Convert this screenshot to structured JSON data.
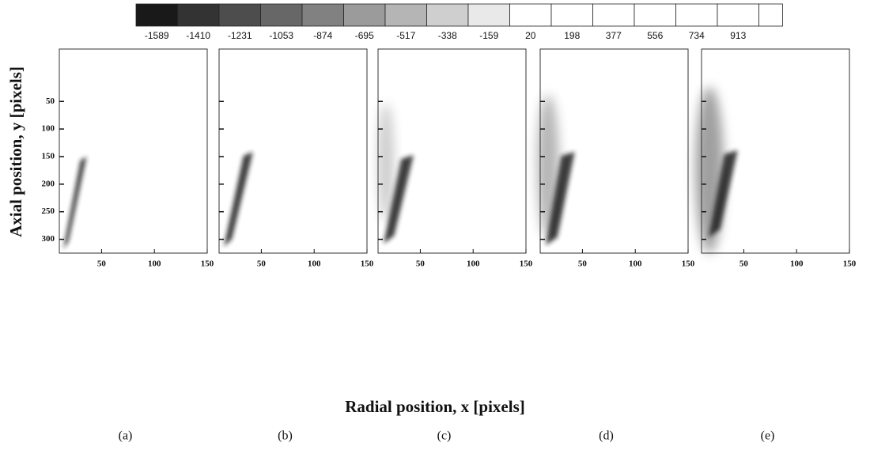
{
  "chart_data": {
    "type": "image-panels",
    "colorbar": {
      "ticks": [
        -1589,
        -1410,
        -1231,
        -1053,
        -874,
        -695,
        -517,
        -338,
        -159,
        20,
        198,
        377,
        556,
        734,
        913
      ]
    },
    "xlabel": "Radial position, x [pixels]",
    "ylabel": "Axial position, y [pixels]",
    "xlim": [
      10,
      150
    ],
    "ylim": [
      325,
      -45
    ],
    "yticks": [
      50,
      100,
      150,
      200,
      250,
      300
    ],
    "panels": [
      {
        "label": "(a)",
        "xticks": [
          50,
          100,
          150
        ]
      },
      {
        "label": "(b)",
        "xticks": [
          50,
          100,
          150
        ]
      },
      {
        "label": "(c)",
        "xticks": [
          50,
          100,
          150
        ]
      },
      {
        "label": "(d)",
        "xticks": [
          50,
          100,
          150
        ]
      },
      {
        "label": "(e)",
        "xticks": [
          50,
          100,
          150
        ]
      }
    ]
  }
}
